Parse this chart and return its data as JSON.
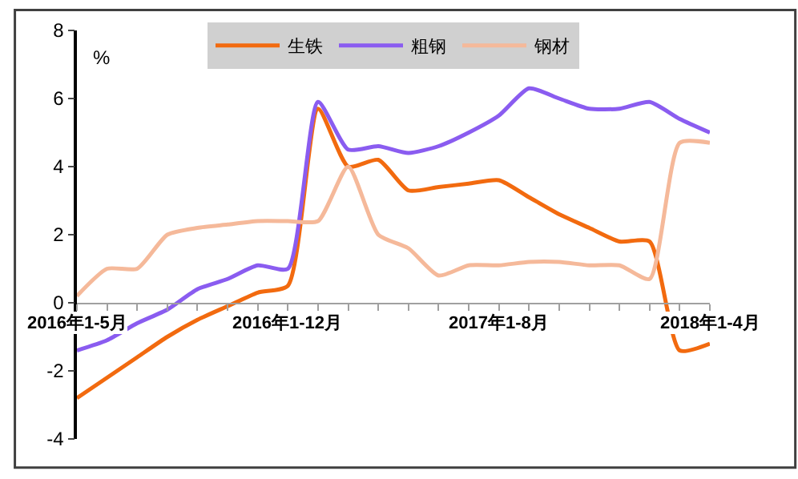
{
  "chart_data": {
    "type": "line",
    "ylabel": "%",
    "categories": [
      "2016年1-5月",
      null,
      null,
      null,
      null,
      null,
      null,
      "2016年1-12月",
      null,
      null,
      null,
      null,
      null,
      null,
      "2017年1-8月",
      null,
      null,
      null,
      null,
      null,
      null,
      "2018年1-4月"
    ],
    "series": [
      {
        "name": "生铁",
        "color": "#f26a0f",
        "values": [
          -2.8,
          -2.2,
          -1.6,
          -1.0,
          -0.5,
          -0.1,
          0.3,
          0.5,
          5.7,
          4.0,
          4.2,
          3.3,
          3.4,
          3.5,
          3.6,
          3.1,
          2.6,
          2.2,
          1.8,
          1.8,
          -1.4,
          -1.2
        ]
      },
      {
        "name": "粗钢",
        "color": "#8a5cf0",
        "values": [
          -1.4,
          -1.1,
          -0.6,
          -0.2,
          0.4,
          0.7,
          1.1,
          1.0,
          5.9,
          4.5,
          4.6,
          4.4,
          4.6,
          5.0,
          5.5,
          6.3,
          6.0,
          5.7,
          5.7,
          5.9,
          5.4,
          5.0
        ]
      },
      {
        "name": "钢材",
        "color": "#f5b99a",
        "values": [
          0.2,
          1.0,
          1.0,
          2.0,
          2.2,
          2.3,
          2.4,
          2.4,
          2.4,
          4.0,
          2.0,
          1.6,
          0.8,
          1.1,
          1.1,
          1.2,
          1.2,
          1.1,
          1.1,
          0.7,
          4.7,
          4.7
        ]
      }
    ],
    "ylim": [
      -4,
      8
    ],
    "yticks": [
      -4,
      -2,
      0,
      2,
      4,
      6,
      8
    ],
    "legend": "top",
    "line_style": "solid",
    "marker": "none"
  }
}
